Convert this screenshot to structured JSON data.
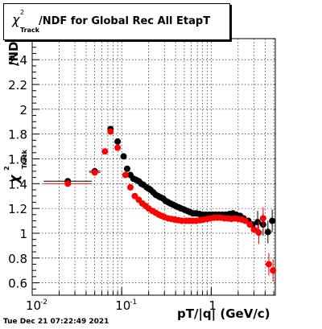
{
  "title": {
    "chi": "χ",
    "sup": "2",
    "sub": "Track",
    "main": "/NDF for Global Rec All EtapT"
  },
  "yaxis_label": {
    "chi": "χ",
    "sup": "2",
    "sub": "Track",
    "suffix": "/ND"
  },
  "xlabel": "pT/|q| (GeV/c)",
  "timestamp": "Tue Dec 21 07:22:49 2021",
  "colors": {
    "black_series": "#000000",
    "red_series": "#ff0000",
    "grid": "#000000"
  },
  "chart_data": {
    "type": "scatter",
    "title": "χ²Track/NDF for Global Rec All EtapT",
    "xlabel": "pT/|q| (GeV/c)",
    "ylabel": "χ²Track/ND",
    "xscale": "log",
    "xlim": [
      0.01,
      5.2
    ],
    "ylim": [
      0.5,
      2.57
    ],
    "grid": true,
    "x_ticks": [
      {
        "value": 0.01,
        "label": "10",
        "exp": "-2"
      },
      {
        "value": 0.1,
        "label": "10",
        "exp": "-1"
      },
      {
        "value": 1,
        "label": "1",
        "exp": ""
      }
    ],
    "y_ticks": [
      "0.6",
      "0.8",
      "1",
      "1.2",
      "1.4",
      "1.6",
      "1.8",
      "2",
      "2.2",
      "2.4"
    ],
    "series": [
      {
        "color": "black",
        "points": [
          [
            0.025,
            1.42
          ],
          [
            0.05,
            1.5
          ],
          [
            0.075,
            1.84
          ],
          [
            0.09,
            1.74
          ],
          [
            0.105,
            1.62
          ],
          [
            0.115,
            1.52
          ],
          [
            0.125,
            1.47
          ],
          [
            0.135,
            1.44
          ],
          [
            0.145,
            1.43
          ],
          [
            0.155,
            1.42
          ],
          [
            0.165,
            1.4
          ],
          [
            0.175,
            1.39
          ],
          [
            0.19,
            1.37
          ],
          [
            0.2,
            1.36
          ],
          [
            0.21,
            1.35
          ],
          [
            0.225,
            1.33
          ],
          [
            0.24,
            1.31
          ],
          [
            0.255,
            1.3
          ],
          [
            0.27,
            1.29
          ],
          [
            0.29,
            1.28
          ],
          [
            0.31,
            1.26
          ],
          [
            0.33,
            1.25
          ],
          [
            0.35,
            1.24
          ],
          [
            0.375,
            1.23
          ],
          [
            0.4,
            1.22
          ],
          [
            0.43,
            1.21
          ],
          [
            0.46,
            1.2
          ],
          [
            0.5,
            1.19
          ],
          [
            0.54,
            1.18
          ],
          [
            0.58,
            1.17
          ],
          [
            0.63,
            1.16
          ],
          [
            0.68,
            1.16
          ],
          [
            0.74,
            1.155
          ],
          [
            0.8,
            1.15
          ],
          [
            0.87,
            1.15
          ],
          [
            0.95,
            1.15
          ],
          [
            1.03,
            1.15
          ],
          [
            1.12,
            1.15
          ],
          [
            1.22,
            1.15
          ],
          [
            1.33,
            1.15
          ],
          [
            1.45,
            1.15
          ],
          [
            1.6,
            1.155
          ],
          [
            1.75,
            1.16
          ],
          [
            1.9,
            1.15
          ],
          [
            2.1,
            1.14
          ],
          [
            2.3,
            1.12
          ],
          [
            2.6,
            1.1
          ],
          [
            2.9,
            1.07
          ],
          [
            3.3,
            1.09
          ],
          [
            3.8,
            1.07
          ],
          [
            4.3,
            1.01
          ],
          [
            4.8,
            1.1
          ]
        ]
      },
      {
        "color": "red",
        "points": [
          [
            0.025,
            1.4
          ],
          [
            0.05,
            1.49
          ],
          [
            0.065,
            1.66
          ],
          [
            0.075,
            1.82
          ],
          [
            0.09,
            1.69
          ],
          [
            0.11,
            1.47
          ],
          [
            0.125,
            1.37
          ],
          [
            0.14,
            1.3
          ],
          [
            0.155,
            1.27
          ],
          [
            0.17,
            1.24
          ],
          [
            0.185,
            1.22
          ],
          [
            0.2,
            1.2
          ],
          [
            0.22,
            1.18
          ],
          [
            0.24,
            1.165
          ],
          [
            0.26,
            1.15
          ],
          [
            0.28,
            1.14
          ],
          [
            0.3,
            1.13
          ],
          [
            0.33,
            1.12
          ],
          [
            0.36,
            1.115
          ],
          [
            0.39,
            1.11
          ],
          [
            0.43,
            1.105
          ],
          [
            0.47,
            1.1
          ],
          [
            0.52,
            1.1
          ],
          [
            0.57,
            1.1
          ],
          [
            0.62,
            1.1
          ],
          [
            0.68,
            1.1
          ],
          [
            0.75,
            1.105
          ],
          [
            0.82,
            1.11
          ],
          [
            0.9,
            1.115
          ],
          [
            0.98,
            1.12
          ],
          [
            1.07,
            1.125
          ],
          [
            1.17,
            1.125
          ],
          [
            1.28,
            1.125
          ],
          [
            1.4,
            1.12
          ],
          [
            1.53,
            1.12
          ],
          [
            1.67,
            1.115
          ],
          [
            1.83,
            1.12
          ],
          [
            2.0,
            1.115
          ],
          [
            2.2,
            1.11
          ],
          [
            2.4,
            1.1
          ],
          [
            2.7,
            1.07
          ],
          [
            3.0,
            1.03
          ],
          [
            3.4,
            1.005
          ],
          [
            3.8,
            1.12
          ],
          [
            4.4,
            0.75
          ],
          [
            4.9,
            0.7
          ]
        ]
      }
    ]
  }
}
